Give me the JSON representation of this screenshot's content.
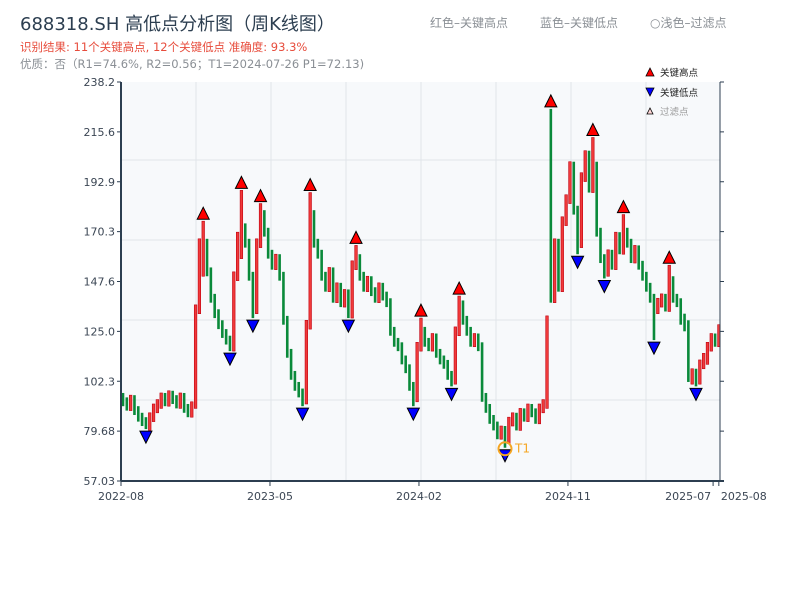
{
  "header": {
    "title": "688318.SH 高低点分析图（周K线图）",
    "result": "识别结果: 11个关键高点, 12个关键低点  准确度: 93.3%",
    "quality": "优质：否（R1=74.6%, R2=0.56；T1=2024-07-26 P1=72.13)",
    "note_high": "红色–关键高点",
    "note_low": "蓝色–关键低点",
    "note_filtered": "○浅色–过滤点"
  },
  "legend": {
    "high": "关键高点",
    "low": "关键低点",
    "filtered": "过滤点"
  },
  "colors": {
    "up": "#e0141e",
    "down": "#0a8a3a",
    "high_marker": "#ff0000",
    "low_marker": "#0000ff",
    "t1": "#f5a623",
    "axis": "#2c3e50"
  },
  "chart_data": {
    "type": "candlestick",
    "title": "688318.SH 高低点分析图（周K线图）",
    "ylim": [
      57.03,
      238.2
    ],
    "yticks": [
      "238.2",
      "215.6",
      "192.9",
      "170.3",
      "147.6",
      "125.0",
      "102.3",
      "79.68",
      "57.03"
    ],
    "xtick_labels": [
      {
        "label": "2022-08",
        "week": 0
      },
      {
        "label": "2023-05",
        "week": 39
      },
      {
        "label": "2024-02",
        "week": 78
      },
      {
        "label": "2024-11",
        "week": 117
      },
      {
        "label": "2025-07",
        "week": 155
      },
      {
        "label": "2025-08",
        "week": 156.5
      }
    ],
    "ohlc": [
      [
        95,
        97,
        91,
        93
      ],
      [
        93,
        95,
        89,
        91
      ],
      [
        91,
        96,
        89,
        94
      ],
      [
        94,
        96,
        87,
        89
      ],
      [
        89,
        91,
        84,
        86
      ],
      [
        86,
        88,
        82,
        84
      ],
      [
        84,
        86,
        80.6,
        82
      ],
      [
        82,
        88,
        80,
        86
      ],
      [
        86,
        92,
        84,
        90
      ],
      [
        90,
        94,
        88,
        92
      ],
      [
        92,
        97,
        90,
        95
      ],
      [
        95,
        97,
        91,
        93
      ],
      [
        93,
        98,
        91,
        96
      ],
      [
        96,
        98,
        92,
        94
      ],
      [
        94,
        96,
        90,
        92
      ],
      [
        92,
        97,
        90,
        95
      ],
      [
        95,
        97,
        88,
        90
      ],
      [
        90,
        92,
        86,
        88
      ],
      [
        88,
        93,
        86,
        91
      ],
      [
        91,
        137,
        90,
        135
      ],
      [
        135,
        167,
        133,
        162
      ],
      [
        162,
        175,
        150,
        165
      ],
      [
        165,
        167,
        150,
        152
      ],
      [
        152,
        154,
        138,
        140
      ],
      [
        140,
        142,
        131,
        133
      ],
      [
        133,
        135,
        126,
        128
      ],
      [
        128,
        130,
        122,
        124
      ],
      [
        124,
        126,
        119,
        121
      ],
      [
        121,
        123,
        116,
        118
      ],
      [
        118,
        152,
        116,
        150
      ],
      [
        150,
        170,
        148,
        160
      ],
      [
        160,
        189,
        158,
        172
      ],
      [
        172,
        174,
        163,
        165
      ],
      [
        165,
        167,
        148,
        150
      ],
      [
        150,
        152,
        131,
        135
      ],
      [
        135,
        167,
        133,
        165
      ],
      [
        165,
        183,
        163,
        178
      ],
      [
        178,
        180,
        168,
        170
      ],
      [
        170,
        172,
        158,
        160
      ],
      [
        160,
        162,
        153,
        155
      ],
      [
        155,
        160,
        153,
        158
      ],
      [
        158,
        160,
        148,
        150
      ],
      [
        150,
        152,
        128,
        130
      ],
      [
        130,
        132,
        113,
        115
      ],
      [
        115,
        117,
        103,
        105
      ],
      [
        105,
        107,
        98,
        100
      ],
      [
        100,
        102,
        95,
        97
      ],
      [
        97,
        99,
        91,
        94
      ],
      [
        94,
        130,
        92,
        128
      ],
      [
        128,
        188,
        126,
        178
      ],
      [
        178,
        180,
        163,
        165
      ],
      [
        165,
        167,
        158,
        160
      ],
      [
        160,
        162,
        148,
        150
      ],
      [
        150,
        152,
        143,
        145
      ],
      [
        145,
        154,
        143,
        152
      ],
      [
        152,
        154,
        138,
        140
      ],
      [
        140,
        147,
        138,
        145
      ],
      [
        145,
        147,
        136,
        138
      ],
      [
        138,
        144,
        136,
        142
      ],
      [
        142,
        144,
        131,
        133
      ],
      [
        133,
        157,
        131,
        155
      ],
      [
        155,
        164,
        153,
        158
      ],
      [
        158,
        160,
        148,
        150
      ],
      [
        150,
        152,
        143,
        145
      ],
      [
        145,
        150,
        143,
        148
      ],
      [
        148,
        150,
        141,
        143
      ],
      [
        143,
        145,
        138,
        140
      ],
      [
        140,
        147,
        138,
        145
      ],
      [
        145,
        147,
        139,
        141
      ],
      [
        141,
        143,
        136,
        138
      ],
      [
        138,
        140,
        123,
        125
      ],
      [
        125,
        127,
        118,
        120
      ],
      [
        120,
        122,
        116,
        118
      ],
      [
        118,
        120,
        110,
        112
      ],
      [
        112,
        114,
        106,
        108
      ],
      [
        108,
        110,
        98,
        100
      ],
      [
        100,
        102,
        91,
        95
      ],
      [
        95,
        120,
        93,
        118
      ],
      [
        118,
        131,
        116,
        125
      ],
      [
        125,
        127,
        118,
        120
      ],
      [
        120,
        122,
        116,
        118
      ],
      [
        118,
        124,
        116,
        122
      ],
      [
        122,
        124,
        113,
        115
      ],
      [
        115,
        117,
        110,
        112
      ],
      [
        112,
        114,
        108,
        110
      ],
      [
        110,
        112,
        103,
        105
      ],
      [
        105,
        107,
        100,
        103
      ],
      [
        103,
        127,
        101,
        125
      ],
      [
        125,
        141,
        123,
        137
      ],
      [
        137,
        139,
        128,
        130
      ],
      [
        130,
        132,
        123,
        125
      ],
      [
        125,
        127,
        118,
        120
      ],
      [
        120,
        124,
        118,
        122
      ],
      [
        122,
        124,
        116,
        118
      ],
      [
        118,
        120,
        93,
        95
      ],
      [
        95,
        97,
        88,
        90
      ],
      [
        90,
        92,
        83,
        85
      ],
      [
        85,
        87,
        80,
        82
      ],
      [
        82,
        84,
        76,
        78
      ],
      [
        78,
        82,
        76,
        80
      ],
      [
        80,
        82,
        72.13,
        76
      ],
      [
        76,
        86,
        74,
        84
      ],
      [
        84,
        88,
        82,
        86
      ],
      [
        86,
        88,
        80,
        82
      ],
      [
        82,
        90,
        80,
        88
      ],
      [
        88,
        90,
        84,
        86
      ],
      [
        86,
        92,
        84,
        90
      ],
      [
        90,
        92,
        86,
        88
      ],
      [
        88,
        90,
        83,
        85
      ],
      [
        85,
        92,
        83,
        90
      ],
      [
        90,
        94,
        88,
        92
      ],
      [
        92,
        132,
        90,
        130
      ],
      [
        160,
        226,
        138,
        140
      ],
      [
        140,
        167,
        138,
        165
      ],
      [
        165,
        167,
        143,
        145
      ],
      [
        145,
        177,
        143,
        175
      ],
      [
        175,
        187,
        173,
        185
      ],
      [
        185,
        202,
        183,
        200
      ],
      [
        200,
        202,
        178,
        180
      ],
      [
        180,
        182,
        160,
        165
      ],
      [
        165,
        197,
        163,
        195
      ],
      [
        195,
        207,
        193,
        205
      ],
      [
        205,
        207,
        188,
        190
      ],
      [
        190,
        213,
        188,
        200
      ],
      [
        200,
        202,
        168,
        170
      ],
      [
        170,
        172,
        156,
        158
      ],
      [
        158,
        160,
        149,
        152
      ],
      [
        152,
        162,
        150,
        160
      ],
      [
        160,
        162,
        153,
        155
      ],
      [
        155,
        170,
        153,
        168
      ],
      [
        168,
        170,
        160,
        162
      ],
      [
        162,
        178,
        160,
        170
      ],
      [
        170,
        172,
        163,
        165
      ],
      [
        165,
        167,
        156,
        158
      ],
      [
        158,
        164,
        156,
        162
      ],
      [
        162,
        164,
        153,
        155
      ],
      [
        155,
        157,
        148,
        150
      ],
      [
        150,
        152,
        143,
        145
      ],
      [
        145,
        147,
        138,
        140
      ],
      [
        140,
        142,
        121,
        135
      ],
      [
        135,
        140,
        133,
        138
      ],
      [
        138,
        142,
        136,
        140
      ],
      [
        140,
        142,
        134,
        136
      ],
      [
        136,
        155,
        134,
        148
      ],
      [
        148,
        150,
        138,
        140
      ],
      [
        140,
        142,
        136,
        138
      ],
      [
        138,
        140,
        128,
        130
      ],
      [
        130,
        133,
        125,
        128
      ],
      [
        128,
        130,
        102,
        104
      ],
      [
        104,
        108,
        101,
        106
      ],
      [
        106,
        108,
        100,
        103
      ],
      [
        103,
        112,
        101,
        110
      ],
      [
        110,
        115,
        108,
        112
      ],
      [
        112,
        120,
        110,
        118
      ],
      [
        118,
        124,
        116,
        122
      ],
      [
        122,
        124,
        118,
        120
      ],
      [
        120,
        128,
        118,
        125
      ]
    ],
    "key_highs": [
      21,
      31,
      36,
      49,
      61,
      78,
      88,
      112,
      123,
      131,
      143
    ],
    "key_lows": [
      6,
      28,
      34,
      47,
      59,
      76,
      86,
      100,
      119,
      126,
      139,
      150
    ],
    "t1": {
      "week": 100,
      "label": "T1",
      "date": "2024-07-26",
      "price": 72.13
    },
    "legend_placement": "top-right",
    "grid": true
  }
}
